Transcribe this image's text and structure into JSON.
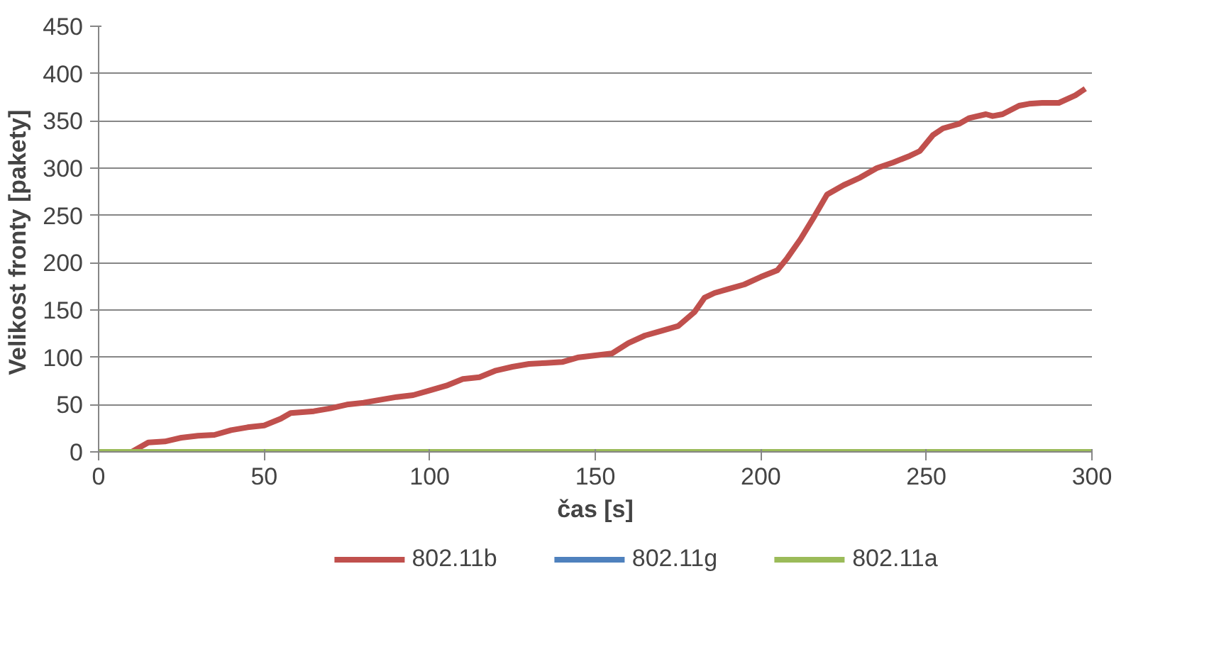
{
  "chart_data": {
    "type": "line",
    "xlabel": "čas [s]",
    "ylabel": "Velikost fronty  [pakety]",
    "xlim": [
      0,
      300
    ],
    "xticks": [
      0,
      50,
      100,
      150,
      200,
      250,
      300
    ],
    "ylim": [
      0,
      450
    ],
    "yticks": [
      0,
      50,
      100,
      150,
      200,
      250,
      300,
      350,
      400,
      450
    ],
    "grid": "y",
    "legend": "bottom",
    "marker": "none",
    "line_style": "solid",
    "series": [
      {
        "name": "802.11b",
        "color": "#c0504d",
        "x": [
          0,
          5,
          10,
          15,
          20,
          25,
          30,
          35,
          40,
          45,
          50,
          55,
          58,
          65,
          70,
          75,
          80,
          85,
          90,
          95,
          100,
          105,
          110,
          115,
          120,
          125,
          130,
          135,
          140,
          145,
          150,
          155,
          160,
          165,
          170,
          175,
          180,
          183,
          186,
          190,
          195,
          200,
          205,
          208,
          212,
          216,
          220,
          225,
          230,
          235,
          240,
          245,
          248,
          252,
          255,
          260,
          263,
          268,
          270,
          273,
          278,
          281,
          285,
          290,
          295,
          298
        ],
        "values": [
          0,
          0,
          0,
          10,
          11,
          15,
          17,
          18,
          23,
          26,
          28,
          35,
          41,
          43,
          46,
          50,
          52,
          55,
          58,
          60,
          65,
          70,
          77,
          79,
          86,
          90,
          93,
          94,
          95,
          100,
          102,
          104,
          115,
          123,
          128,
          133,
          148,
          163,
          168,
          172,
          177,
          185,
          192,
          205,
          225,
          248,
          272,
          282,
          290,
          300,
          306,
          313,
          318,
          335,
          342,
          347,
          353,
          357,
          355,
          357,
          366,
          368,
          369,
          369,
          377,
          384
        ]
      },
      {
        "name": "802.11g",
        "color": "#4f81bd",
        "values": [
          null,
          null
        ]
      },
      {
        "name": "802.11a",
        "color": "#9bbb59",
        "x": [
          0,
          300
        ],
        "values": [
          0,
          0
        ]
      }
    ]
  }
}
